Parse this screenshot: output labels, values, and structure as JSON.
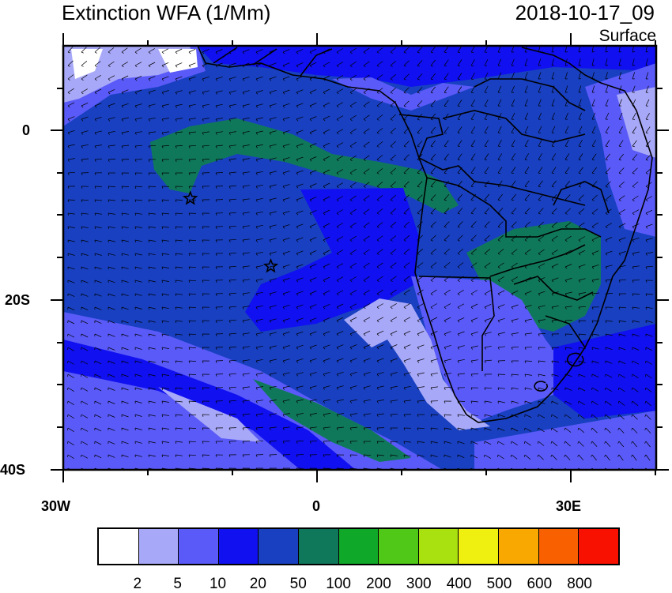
{
  "title": "Extinction WFA (1/Mm)",
  "datetime": "2018-10-17_09",
  "level": "Surface",
  "lat_labels": [
    "0",
    "20S",
    "40S"
  ],
  "lon_labels": [
    "30W",
    "0",
    "30E"
  ],
  "colorbar": {
    "colors": [
      "#ffffff",
      "#a8a8f8",
      "#5a5af8",
      "#1010f0",
      "#1840c0",
      "#10785a",
      "#10a828",
      "#50c818",
      "#a8e010",
      "#f0f010",
      "#f8a800",
      "#f86000",
      "#f81000"
    ],
    "labels": [
      "2",
      "5",
      "10",
      "20",
      "50",
      "100",
      "200",
      "300",
      "400",
      "500",
      "600",
      "800"
    ]
  },
  "markers": [
    {
      "name": "star-marker",
      "lon": -15,
      "lat": -8
    },
    {
      "name": "star-marker",
      "lon": -5.5,
      "lat": -16
    }
  ],
  "chart_data": {
    "type": "heatmap",
    "title": "Extinction WFA (1/Mm)",
    "xlim": [
      -30,
      40
    ],
    "ylim": [
      -40,
      10
    ],
    "x_ticks": [
      "30W",
      "0",
      "30E"
    ],
    "y_ticks": [
      "0",
      "20S",
      "40S"
    ],
    "levels": [
      2,
      5,
      10,
      20,
      50,
      100,
      200,
      300,
      400,
      500,
      600,
      800
    ]
  }
}
